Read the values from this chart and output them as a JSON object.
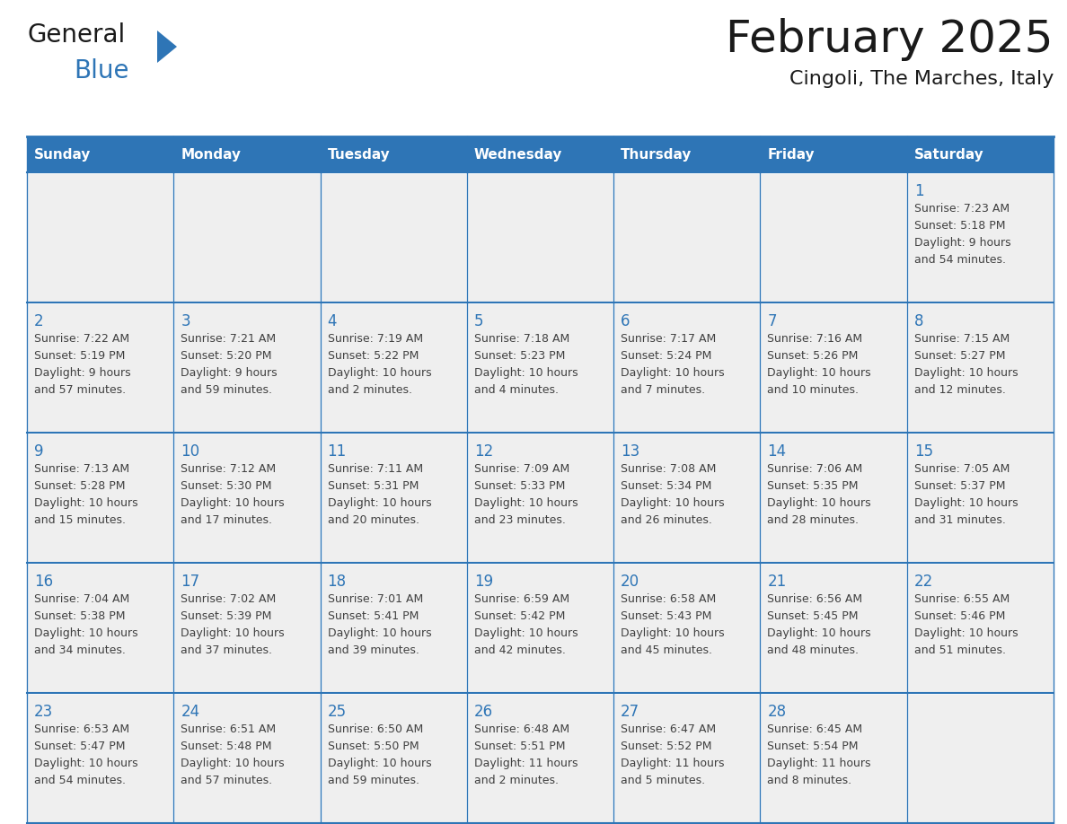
{
  "title": "February 2025",
  "subtitle": "Cingoli, The Marches, Italy",
  "days_of_week": [
    "Sunday",
    "Monday",
    "Tuesday",
    "Wednesday",
    "Thursday",
    "Friday",
    "Saturday"
  ],
  "header_bg": "#2E75B6",
  "header_text_color": "#FFFFFF",
  "cell_bg": "#EFEFEF",
  "grid_line_color": "#2E75B6",
  "text_color": "#404040",
  "day_number_color": "#2E75B6",
  "title_color": "#1a1a1a",
  "subtitle_color": "#1a1a1a",
  "logo_general_color": "#1a1a1a",
  "logo_blue_color": "#2E75B6",
  "calendar_data": [
    [
      null,
      null,
      null,
      null,
      null,
      null,
      {
        "day": "1",
        "sunrise": "7:23 AM",
        "sunset": "5:18 PM",
        "daylight_line1": "Daylight: 9 hours",
        "daylight_line2": "and 54 minutes."
      }
    ],
    [
      {
        "day": "2",
        "sunrise": "7:22 AM",
        "sunset": "5:19 PM",
        "daylight_line1": "Daylight: 9 hours",
        "daylight_line2": "and 57 minutes."
      },
      {
        "day": "3",
        "sunrise": "7:21 AM",
        "sunset": "5:20 PM",
        "daylight_line1": "Daylight: 9 hours",
        "daylight_line2": "and 59 minutes."
      },
      {
        "day": "4",
        "sunrise": "7:19 AM",
        "sunset": "5:22 PM",
        "daylight_line1": "Daylight: 10 hours",
        "daylight_line2": "and 2 minutes."
      },
      {
        "day": "5",
        "sunrise": "7:18 AM",
        "sunset": "5:23 PM",
        "daylight_line1": "Daylight: 10 hours",
        "daylight_line2": "and 4 minutes."
      },
      {
        "day": "6",
        "sunrise": "7:17 AM",
        "sunset": "5:24 PM",
        "daylight_line1": "Daylight: 10 hours",
        "daylight_line2": "and 7 minutes."
      },
      {
        "day": "7",
        "sunrise": "7:16 AM",
        "sunset": "5:26 PM",
        "daylight_line1": "Daylight: 10 hours",
        "daylight_line2": "and 10 minutes."
      },
      {
        "day": "8",
        "sunrise": "7:15 AM",
        "sunset": "5:27 PM",
        "daylight_line1": "Daylight: 10 hours",
        "daylight_line2": "and 12 minutes."
      }
    ],
    [
      {
        "day": "9",
        "sunrise": "7:13 AM",
        "sunset": "5:28 PM",
        "daylight_line1": "Daylight: 10 hours",
        "daylight_line2": "and 15 minutes."
      },
      {
        "day": "10",
        "sunrise": "7:12 AM",
        "sunset": "5:30 PM",
        "daylight_line1": "Daylight: 10 hours",
        "daylight_line2": "and 17 minutes."
      },
      {
        "day": "11",
        "sunrise": "7:11 AM",
        "sunset": "5:31 PM",
        "daylight_line1": "Daylight: 10 hours",
        "daylight_line2": "and 20 minutes."
      },
      {
        "day": "12",
        "sunrise": "7:09 AM",
        "sunset": "5:33 PM",
        "daylight_line1": "Daylight: 10 hours",
        "daylight_line2": "and 23 minutes."
      },
      {
        "day": "13",
        "sunrise": "7:08 AM",
        "sunset": "5:34 PM",
        "daylight_line1": "Daylight: 10 hours",
        "daylight_line2": "and 26 minutes."
      },
      {
        "day": "14",
        "sunrise": "7:06 AM",
        "sunset": "5:35 PM",
        "daylight_line1": "Daylight: 10 hours",
        "daylight_line2": "and 28 minutes."
      },
      {
        "day": "15",
        "sunrise": "7:05 AM",
        "sunset": "5:37 PM",
        "daylight_line1": "Daylight: 10 hours",
        "daylight_line2": "and 31 minutes."
      }
    ],
    [
      {
        "day": "16",
        "sunrise": "7:04 AM",
        "sunset": "5:38 PM",
        "daylight_line1": "Daylight: 10 hours",
        "daylight_line2": "and 34 minutes."
      },
      {
        "day": "17",
        "sunrise": "7:02 AM",
        "sunset": "5:39 PM",
        "daylight_line1": "Daylight: 10 hours",
        "daylight_line2": "and 37 minutes."
      },
      {
        "day": "18",
        "sunrise": "7:01 AM",
        "sunset": "5:41 PM",
        "daylight_line1": "Daylight: 10 hours",
        "daylight_line2": "and 39 minutes."
      },
      {
        "day": "19",
        "sunrise": "6:59 AM",
        "sunset": "5:42 PM",
        "daylight_line1": "Daylight: 10 hours",
        "daylight_line2": "and 42 minutes."
      },
      {
        "day": "20",
        "sunrise": "6:58 AM",
        "sunset": "5:43 PM",
        "daylight_line1": "Daylight: 10 hours",
        "daylight_line2": "and 45 minutes."
      },
      {
        "day": "21",
        "sunrise": "6:56 AM",
        "sunset": "5:45 PM",
        "daylight_line1": "Daylight: 10 hours",
        "daylight_line2": "and 48 minutes."
      },
      {
        "day": "22",
        "sunrise": "6:55 AM",
        "sunset": "5:46 PM",
        "daylight_line1": "Daylight: 10 hours",
        "daylight_line2": "and 51 minutes."
      }
    ],
    [
      {
        "day": "23",
        "sunrise": "6:53 AM",
        "sunset": "5:47 PM",
        "daylight_line1": "Daylight: 10 hours",
        "daylight_line2": "and 54 minutes."
      },
      {
        "day": "24",
        "sunrise": "6:51 AM",
        "sunset": "5:48 PM",
        "daylight_line1": "Daylight: 10 hours",
        "daylight_line2": "and 57 minutes."
      },
      {
        "day": "25",
        "sunrise": "6:50 AM",
        "sunset": "5:50 PM",
        "daylight_line1": "Daylight: 10 hours",
        "daylight_line2": "and 59 minutes."
      },
      {
        "day": "26",
        "sunrise": "6:48 AM",
        "sunset": "5:51 PM",
        "daylight_line1": "Daylight: 11 hours",
        "daylight_line2": "and 2 minutes."
      },
      {
        "day": "27",
        "sunrise": "6:47 AM",
        "sunset": "5:52 PM",
        "daylight_line1": "Daylight: 11 hours",
        "daylight_line2": "and 5 minutes."
      },
      {
        "day": "28",
        "sunrise": "6:45 AM",
        "sunset": "5:54 PM",
        "daylight_line1": "Daylight: 11 hours",
        "daylight_line2": "and 8 minutes."
      },
      null
    ]
  ],
  "fig_width": 11.88,
  "fig_height": 9.18,
  "dpi": 100
}
